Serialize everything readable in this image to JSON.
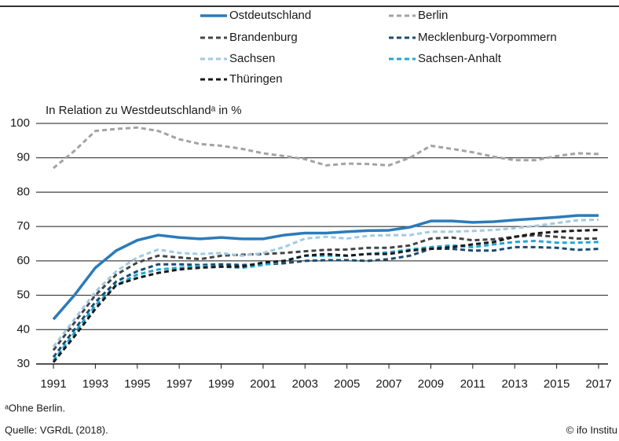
{
  "chart_data": {
    "type": "line",
    "y_label": "In Relation zu Westdeutschlandᵃ in %",
    "footnote": "ᵃOhne Berlin.",
    "source": "Quelle: VGRdL (2018).",
    "credit": "© ifo Institu",
    "x": [
      1991,
      1992,
      1993,
      1994,
      1995,
      1996,
      1997,
      1998,
      1999,
      2000,
      2001,
      2002,
      2003,
      2004,
      2005,
      2006,
      2007,
      2008,
      2009,
      2010,
      2011,
      2012,
      2013,
      2014,
      2015,
      2016,
      2017
    ],
    "xlim": [
      1991,
      2017
    ],
    "xticks": [
      1991,
      1993,
      1995,
      1997,
      1999,
      2001,
      2003,
      2005,
      2007,
      2009,
      2011,
      2013,
      2015,
      2017
    ],
    "ylim": [
      30,
      100
    ],
    "yticks": [
      30,
      40,
      50,
      60,
      70,
      80,
      90,
      100
    ],
    "grid": true,
    "series": [
      {
        "name": "Ostdeutschland",
        "color": "#2b7bba",
        "dashed": false,
        "values": [
          43,
          50,
          58,
          63,
          66,
          67.5,
          66.8,
          66.4,
          66.8,
          66.4,
          66.4,
          67.5,
          68.1,
          68.1,
          68.5,
          68.8,
          68.9,
          69.8,
          71.6,
          71.6,
          71.2,
          71.4,
          71.9,
          72.3,
          72.7,
          73.2,
          73.2
        ]
      },
      {
        "name": "Berlin",
        "color": "#a3a3a3",
        "dashed": true,
        "values": [
          87,
          92,
          97.8,
          98.4,
          98.8,
          97.8,
          95.4,
          94,
          93.5,
          92.6,
          91.3,
          90.5,
          89.6,
          87.8,
          88.3,
          88.2,
          87.8,
          90,
          93.5,
          92.6,
          91.6,
          90.3,
          89.3,
          89.3,
          90.5,
          91.3,
          91.1
        ]
      },
      {
        "name": "Brandenburg",
        "color": "#444444",
        "dashed": true,
        "values": [
          34,
          42,
          50,
          56,
          59.5,
          61.5,
          61,
          60.5,
          61.5,
          61.8,
          62,
          62.3,
          62.8,
          63.2,
          63.3,
          63.8,
          63.8,
          64.5,
          66.5,
          66.8,
          66,
          66.3,
          67,
          67.5,
          67,
          66.5,
          66.5
        ]
      },
      {
        "name": "Mecklenburg-Vorpommern",
        "color": "#1b4c6e",
        "dashed": true,
        "values": [
          32,
          40,
          48,
          54,
          57,
          59,
          59,
          58.8,
          59,
          58.8,
          59,
          59.3,
          60,
          60.2,
          60.2,
          60,
          60.5,
          61.5,
          63.5,
          63.5,
          63,
          63,
          64,
          64,
          63.8,
          63.2,
          63.5
        ]
      },
      {
        "name": "Sachsen",
        "color": "#9fcae4",
        "dashed": true,
        "values": [
          35,
          43,
          51,
          57,
          61,
          63.3,
          62.3,
          62,
          62.3,
          61.5,
          62.3,
          64,
          66.5,
          67,
          66.5,
          67.3,
          67.5,
          67.5,
          68.5,
          68.5,
          68.7,
          69,
          69.5,
          70.2,
          71,
          71.8,
          72
        ]
      },
      {
        "name": "Sachsen-Anhalt",
        "color": "#20a7d6",
        "dashed": true,
        "values": [
          31,
          39,
          47,
          53,
          56,
          57.5,
          58,
          58.5,
          58.3,
          58,
          58.8,
          60,
          61.5,
          61.5,
          61.5,
          62,
          62.5,
          63.3,
          64,
          64.5,
          64,
          64.8,
          65.5,
          65.8,
          65.3,
          65.3,
          65.5
        ]
      },
      {
        "name": "Thüringen",
        "color": "#1a1a1a",
        "dashed": true,
        "values": [
          30.5,
          38,
          46,
          53,
          55,
          56.5,
          57.5,
          58,
          58.3,
          58.3,
          59.5,
          60,
          61.5,
          62,
          61.5,
          62,
          62,
          63,
          63.5,
          64,
          64.8,
          65.5,
          67,
          68,
          68.5,
          68.8,
          69
        ]
      }
    ]
  }
}
